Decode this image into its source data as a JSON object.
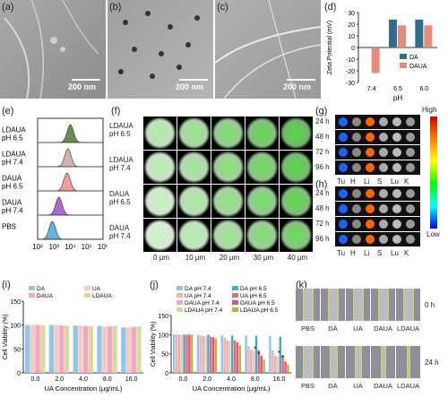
{
  "panels": {
    "a": {
      "label": "(a)",
      "scale": "200 nm"
    },
    "b": {
      "label": "(b)",
      "scale": "200 nm"
    },
    "c": {
      "label": "(c)",
      "scale": "200 nm"
    },
    "d": {
      "label": "(d)"
    },
    "e": {
      "label": "(e)",
      "rows": [
        "LDAUA\npH 6.5",
        "LDAUA\npH 7.4",
        "DAUA\npH 6.5",
        "DAUA\npH 7.4",
        "PBS"
      ]
    },
    "f": {
      "label": "(f)",
      "rows": [
        "LDAUA\npH 6.5",
        "LDAUA\npH 7.4",
        "DAUA\npH 6.5",
        "DAUA\npH 7.4"
      ],
      "depths": [
        "0 μm",
        "10 μm",
        "20 μm",
        "30 μm",
        "40 μm"
      ]
    },
    "g": {
      "label": "(g)",
      "times": [
        "24 h",
        "48 h",
        "72 h",
        "96 h"
      ],
      "organs": [
        "Tu",
        "H",
        "Li",
        "S",
        "Lu",
        "K"
      ]
    },
    "h": {
      "label": "(h)",
      "times": [
        "24 h",
        "48 h",
        "72 h",
        "96 h"
      ],
      "organs": [
        "Tu",
        "H",
        "Li",
        "S",
        "Lu",
        "K"
      ]
    },
    "scale_high": "High",
    "scale_low": "Low",
    "i": {
      "label": "(i)"
    },
    "j": {
      "label": "(j)"
    },
    "k": {
      "label": "(k)",
      "times": [
        "0 h",
        "24 h"
      ],
      "groups": [
        "PBS",
        "DA",
        "UA",
        "DAUA",
        "LDAUA"
      ]
    }
  },
  "chart_data": [
    {
      "id": "d",
      "type": "bar",
      "title": "",
      "xlabel": "pH",
      "ylabel": "Zeta Potential (mV)",
      "categories": [
        "7.4",
        "6.5",
        "6.0"
      ],
      "ylim": [
        -30,
        30
      ],
      "yticks": [
        "-30",
        "-20",
        "-10",
        "0",
        "10",
        "20",
        "30"
      ],
      "series": [
        {
          "name": "DA",
          "color": "#2f6f8c",
          "values": [
            0.5,
            24,
            24
          ]
        },
        {
          "name": "DAUA",
          "color": "#e88a7a",
          "values": [
            -22,
            19,
            19
          ]
        }
      ],
      "legend": "center-right"
    },
    {
      "id": "e",
      "type": "area",
      "xlabel": "",
      "xticklabels": [
        "10²",
        "10³",
        "10⁴",
        "10⁵",
        "10⁶"
      ],
      "series": [
        {
          "name": "LDAUA pH 6.5",
          "color": "#4a7a2a",
          "peak": 4.0
        },
        {
          "name": "LDAUA pH 7.4",
          "color": "#c9a5a0",
          "peak": 3.85
        },
        {
          "name": "DAUA pH 6.5",
          "color": "#f28b82",
          "peak": 3.8
        },
        {
          "name": "DAUA pH 7.4",
          "color": "#a24ec9",
          "peak": 3.3
        },
        {
          "name": "PBS",
          "color": "#4da3e0",
          "peak": 2.9
        }
      ]
    },
    {
      "id": "i",
      "type": "bar",
      "xlabel": "UA Concentration (μg/mL)",
      "ylabel": "Cell Viability (%)",
      "categories": [
        "0.0",
        "2.0",
        "4.0",
        "8.0",
        "16.0"
      ],
      "ylim": [
        0,
        150
      ],
      "yticks": [
        "0",
        "50",
        "100",
        "150"
      ],
      "series": [
        {
          "name": "DA",
          "color": "#8fc7e8",
          "values": [
            100,
            100,
            99,
            98,
            95
          ]
        },
        {
          "name": "UA",
          "color": "#f7c9c3",
          "values": [
            100,
            100,
            99,
            97,
            95
          ]
        },
        {
          "name": "DAUA",
          "color": "#f1a7c4",
          "values": [
            100,
            99,
            98,
            97,
            96
          ]
        },
        {
          "name": "LDAUA",
          "color": "#d8d8a0",
          "values": [
            100,
            99,
            98,
            98,
            97
          ]
        }
      ],
      "legend": "top"
    },
    {
      "id": "j",
      "type": "bar",
      "xlabel": "UA Concentration (μg/mL)",
      "ylabel": "Cell Viability (%)",
      "categories": [
        "0.0",
        "2.0",
        "4.0",
        "8.0",
        "16.0"
      ],
      "ylim": [
        0,
        150
      ],
      "yticks": [
        "0",
        "50",
        "100",
        "150"
      ],
      "series": [
        {
          "name": "DA pH 7.4",
          "color": "#8fc7e8",
          "values": [
            100,
            100,
            99,
            98,
            96
          ]
        },
        {
          "name": "UA pH 7.4",
          "color": "#f7b3a8",
          "values": [
            100,
            98,
            92,
            70,
            60
          ]
        },
        {
          "name": "DAUA pH 7.4",
          "color": "#f1a7c4",
          "values": [
            100,
            97,
            85,
            60,
            45
          ]
        },
        {
          "name": "LDAUA pH 7.4",
          "color": "#d8d8a0",
          "values": [
            100,
            96,
            83,
            58,
            42
          ]
        },
        {
          "name": "DA pH 6.5",
          "color": "#4aa7de",
          "values": [
            100,
            100,
            98,
            97,
            95
          ]
        },
        {
          "name": "UA pH 6.5",
          "color": "#e76d6d",
          "values": [
            100,
            95,
            85,
            60,
            45
          ]
        },
        {
          "name": "DAUA pH 6.5",
          "color": "#e6527f",
          "values": [
            100,
            93,
            80,
            45,
            30
          ]
        },
        {
          "name": "LDAUA pH 6.5",
          "color": "#b6b640",
          "values": [
            100,
            90,
            72,
            35,
            22
          ]
        }
      ],
      "annotations": [
        "*",
        "*",
        "*",
        "*"
      ],
      "legend": "top"
    }
  ]
}
